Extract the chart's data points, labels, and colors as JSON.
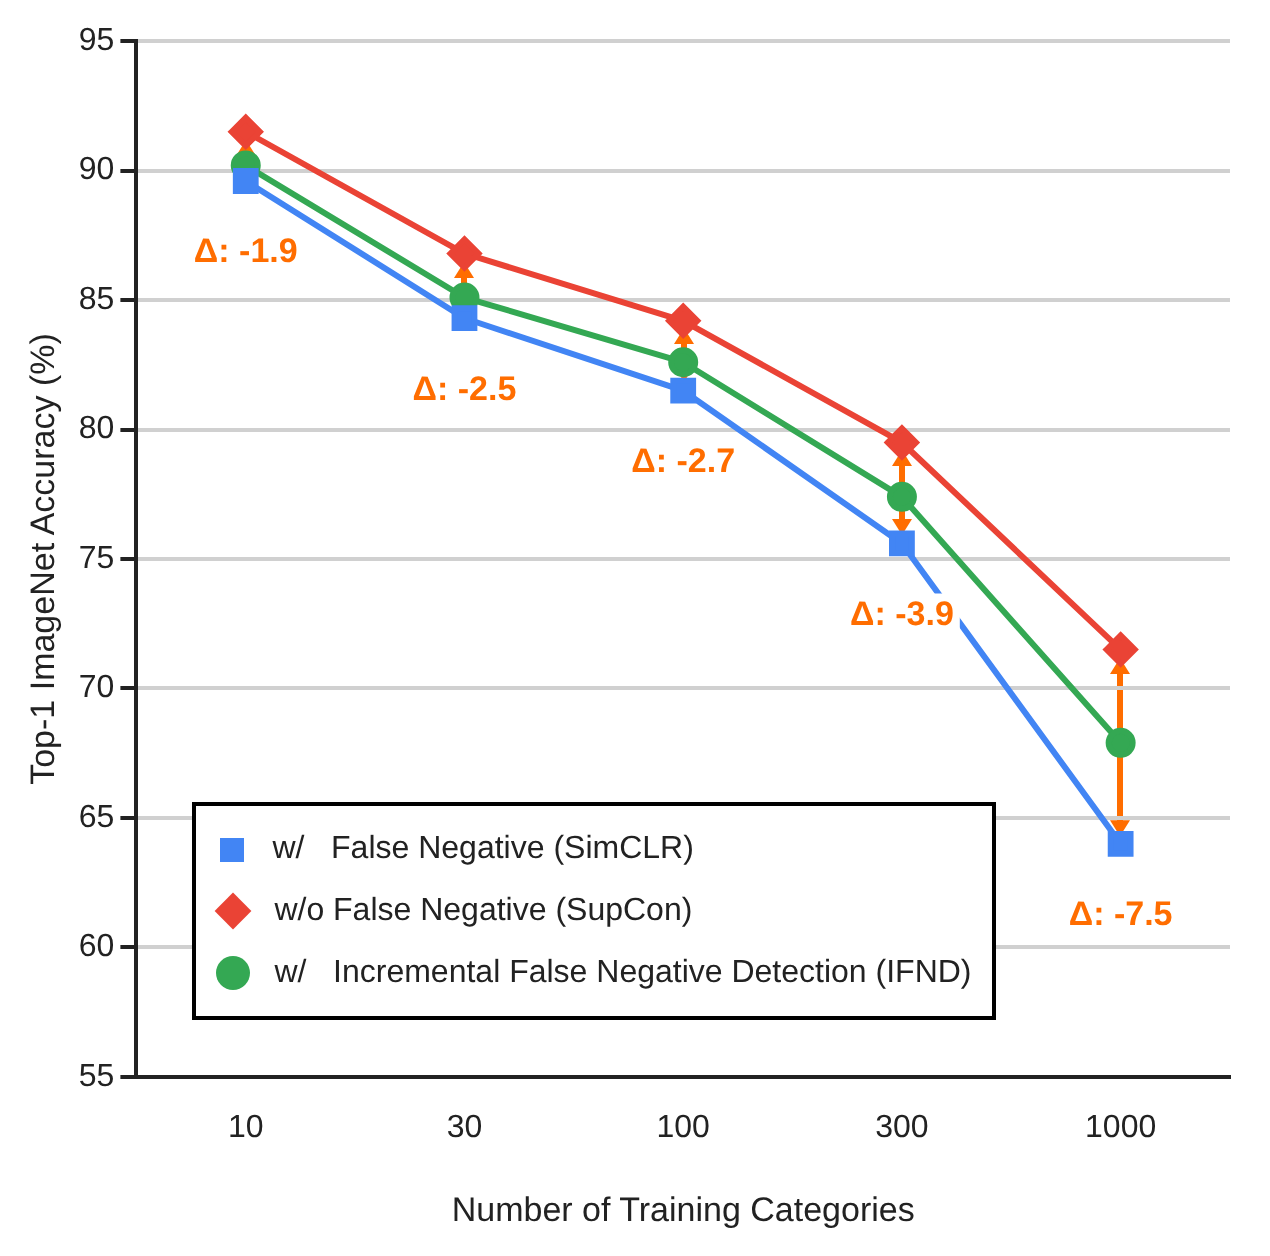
{
  "chart_data": {
    "type": "line",
    "xlabel": "Number of Training Categories",
    "ylabel": "Top-1 ImageNet Accuracy (%)",
    "categories": [
      "10",
      "30",
      "100",
      "300",
      "1000"
    ],
    "series": [
      {
        "name": "w/   False Negative (SimCLR)",
        "color": "#4285f4",
        "marker": "square",
        "values": [
          89.6,
          84.3,
          81.5,
          75.6,
          64.0
        ]
      },
      {
        "name": "w/o False Negative (SupCon)",
        "color": "#ea4335",
        "marker": "diamond",
        "values": [
          91.5,
          86.8,
          84.2,
          79.5,
          71.5
        ]
      },
      {
        "name": "w/   Incremental False Negative Detection (IFND)",
        "color": "#34a853",
        "marker": "circle",
        "values": [
          90.2,
          85.1,
          82.6,
          77.4,
          67.9
        ]
      }
    ],
    "ylim": [
      55,
      95
    ],
    "yticks": [
      55,
      60,
      65,
      70,
      75,
      80,
      85,
      90,
      95
    ],
    "grid": "y",
    "legend": "bottom left",
    "annotations": [
      {
        "text": "Δ: -1.9",
        "x": "10",
        "y": 89.6
      },
      {
        "text": "Δ: -2.5",
        "x": "30",
        "y": 84.3
      },
      {
        "text": "Δ: -2.7",
        "x": "100",
        "y": 81.5
      },
      {
        "text": "Δ: -3.9",
        "x": "300",
        "y": 75.6
      },
      {
        "text": "Δ: -7.5",
        "x": "1000",
        "y": 64.0
      }
    ]
  }
}
